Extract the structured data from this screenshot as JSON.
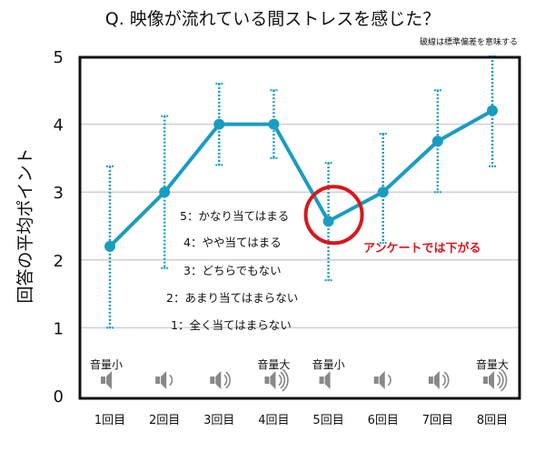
{
  "chart_data": {
    "type": "line",
    "title": "Q. 映像が流れている間ストレスを感じた？",
    "note": "破線は標準偏差を意味する",
    "ylabel": "回答の平均ポイント",
    "xlabel": "",
    "ylim": [
      0,
      5
    ],
    "yticks": [
      "0",
      "1",
      "2",
      "3",
      "4",
      "5"
    ],
    "grid": true,
    "categories": [
      "1回目",
      "2回目",
      "3回目",
      "4回目",
      "5回目",
      "6回目",
      "7回目",
      "8回目"
    ],
    "series": [
      {
        "name": "平均ポイント",
        "color": "#1a9cc0",
        "values": [
          2.2,
          3.0,
          4.0,
          4.0,
          2.57,
          3.0,
          3.75,
          4.2
        ],
        "error_low": [
          1.0,
          1.88,
          3.4,
          3.5,
          1.7,
          2.25,
          3.0,
          3.38
        ],
        "error_high": [
          3.38,
          4.12,
          4.6,
          4.5,
          3.43,
          3.86,
          4.5,
          5.0
        ]
      }
    ],
    "scale_legend": [
      "5：かなり当てはまる",
      "4：やや当てはまる",
      "3：どちらでもない",
      "2：あまり当てはまらない",
      "1：全く当てはまらない"
    ],
    "annotation": {
      "text": "アンケートでは下がる",
      "target_index": 4,
      "color": "#d9161c"
    },
    "volume_levels": [
      0,
      1,
      2,
      3,
      0,
      1,
      2,
      3
    ],
    "volume_labels": [
      {
        "index": 0,
        "text": "音量小"
      },
      {
        "index": 3,
        "text": "音量大"
      },
      {
        "index": 4,
        "text": "音量小"
      },
      {
        "index": 7,
        "text": "音量大"
      }
    ]
  }
}
